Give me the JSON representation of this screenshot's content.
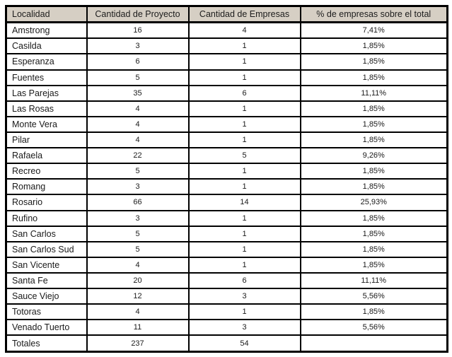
{
  "table": {
    "columns": [
      {
        "key": "localidad",
        "label": "Localidad"
      },
      {
        "key": "proyectos",
        "label": "Cantidad de Proyecto"
      },
      {
        "key": "empresas",
        "label": "Cantidad de Empresas"
      },
      {
        "key": "porcentaje",
        "label": "% de empresas sobre el total"
      }
    ],
    "rows": [
      [
        "Amstrong",
        "16",
        "4",
        "7,41%"
      ],
      [
        "Casilda",
        "3",
        "1",
        "1,85%"
      ],
      [
        "Esperanza",
        "6",
        "1",
        "1,85%"
      ],
      [
        "Fuentes",
        "5",
        "1",
        "1,85%"
      ],
      [
        "Las Parejas",
        "35",
        "6",
        "11,11%"
      ],
      [
        "Las Rosas",
        "4",
        "1",
        "1,85%"
      ],
      [
        "Monte Vera",
        "4",
        "1",
        "1,85%"
      ],
      [
        "Pilar",
        "4",
        "1",
        "1,85%"
      ],
      [
        "Rafaela",
        "22",
        "5",
        "9,26%"
      ],
      [
        "Recreo",
        "5",
        "1",
        "1,85%"
      ],
      [
        "Romang",
        "3",
        "1",
        "1,85%"
      ],
      [
        "Rosario",
        "66",
        "14",
        "25,93%"
      ],
      [
        "Rufino",
        "3",
        "1",
        "1,85%"
      ],
      [
        "San Carlos",
        "5",
        "1",
        "1,85%"
      ],
      [
        "San Carlos Sud",
        "5",
        "1",
        "1,85%"
      ],
      [
        "San Vicente",
        "4",
        "1",
        "1,85%"
      ],
      [
        "Santa Fe",
        "20",
        "6",
        "11,11%"
      ],
      [
        "Sauce Viejo",
        "12",
        "3",
        "5,56%"
      ],
      [
        "Totoras",
        "4",
        "1",
        "1,85%"
      ],
      [
        "Venado Tuerto",
        "11",
        "3",
        "5,56%"
      ],
      [
        "Totales",
        "237",
        "54",
        ""
      ]
    ],
    "colors": {
      "header_bg": "#d6cfc4",
      "border": "#000000",
      "text": "#1a1a1a"
    }
  }
}
